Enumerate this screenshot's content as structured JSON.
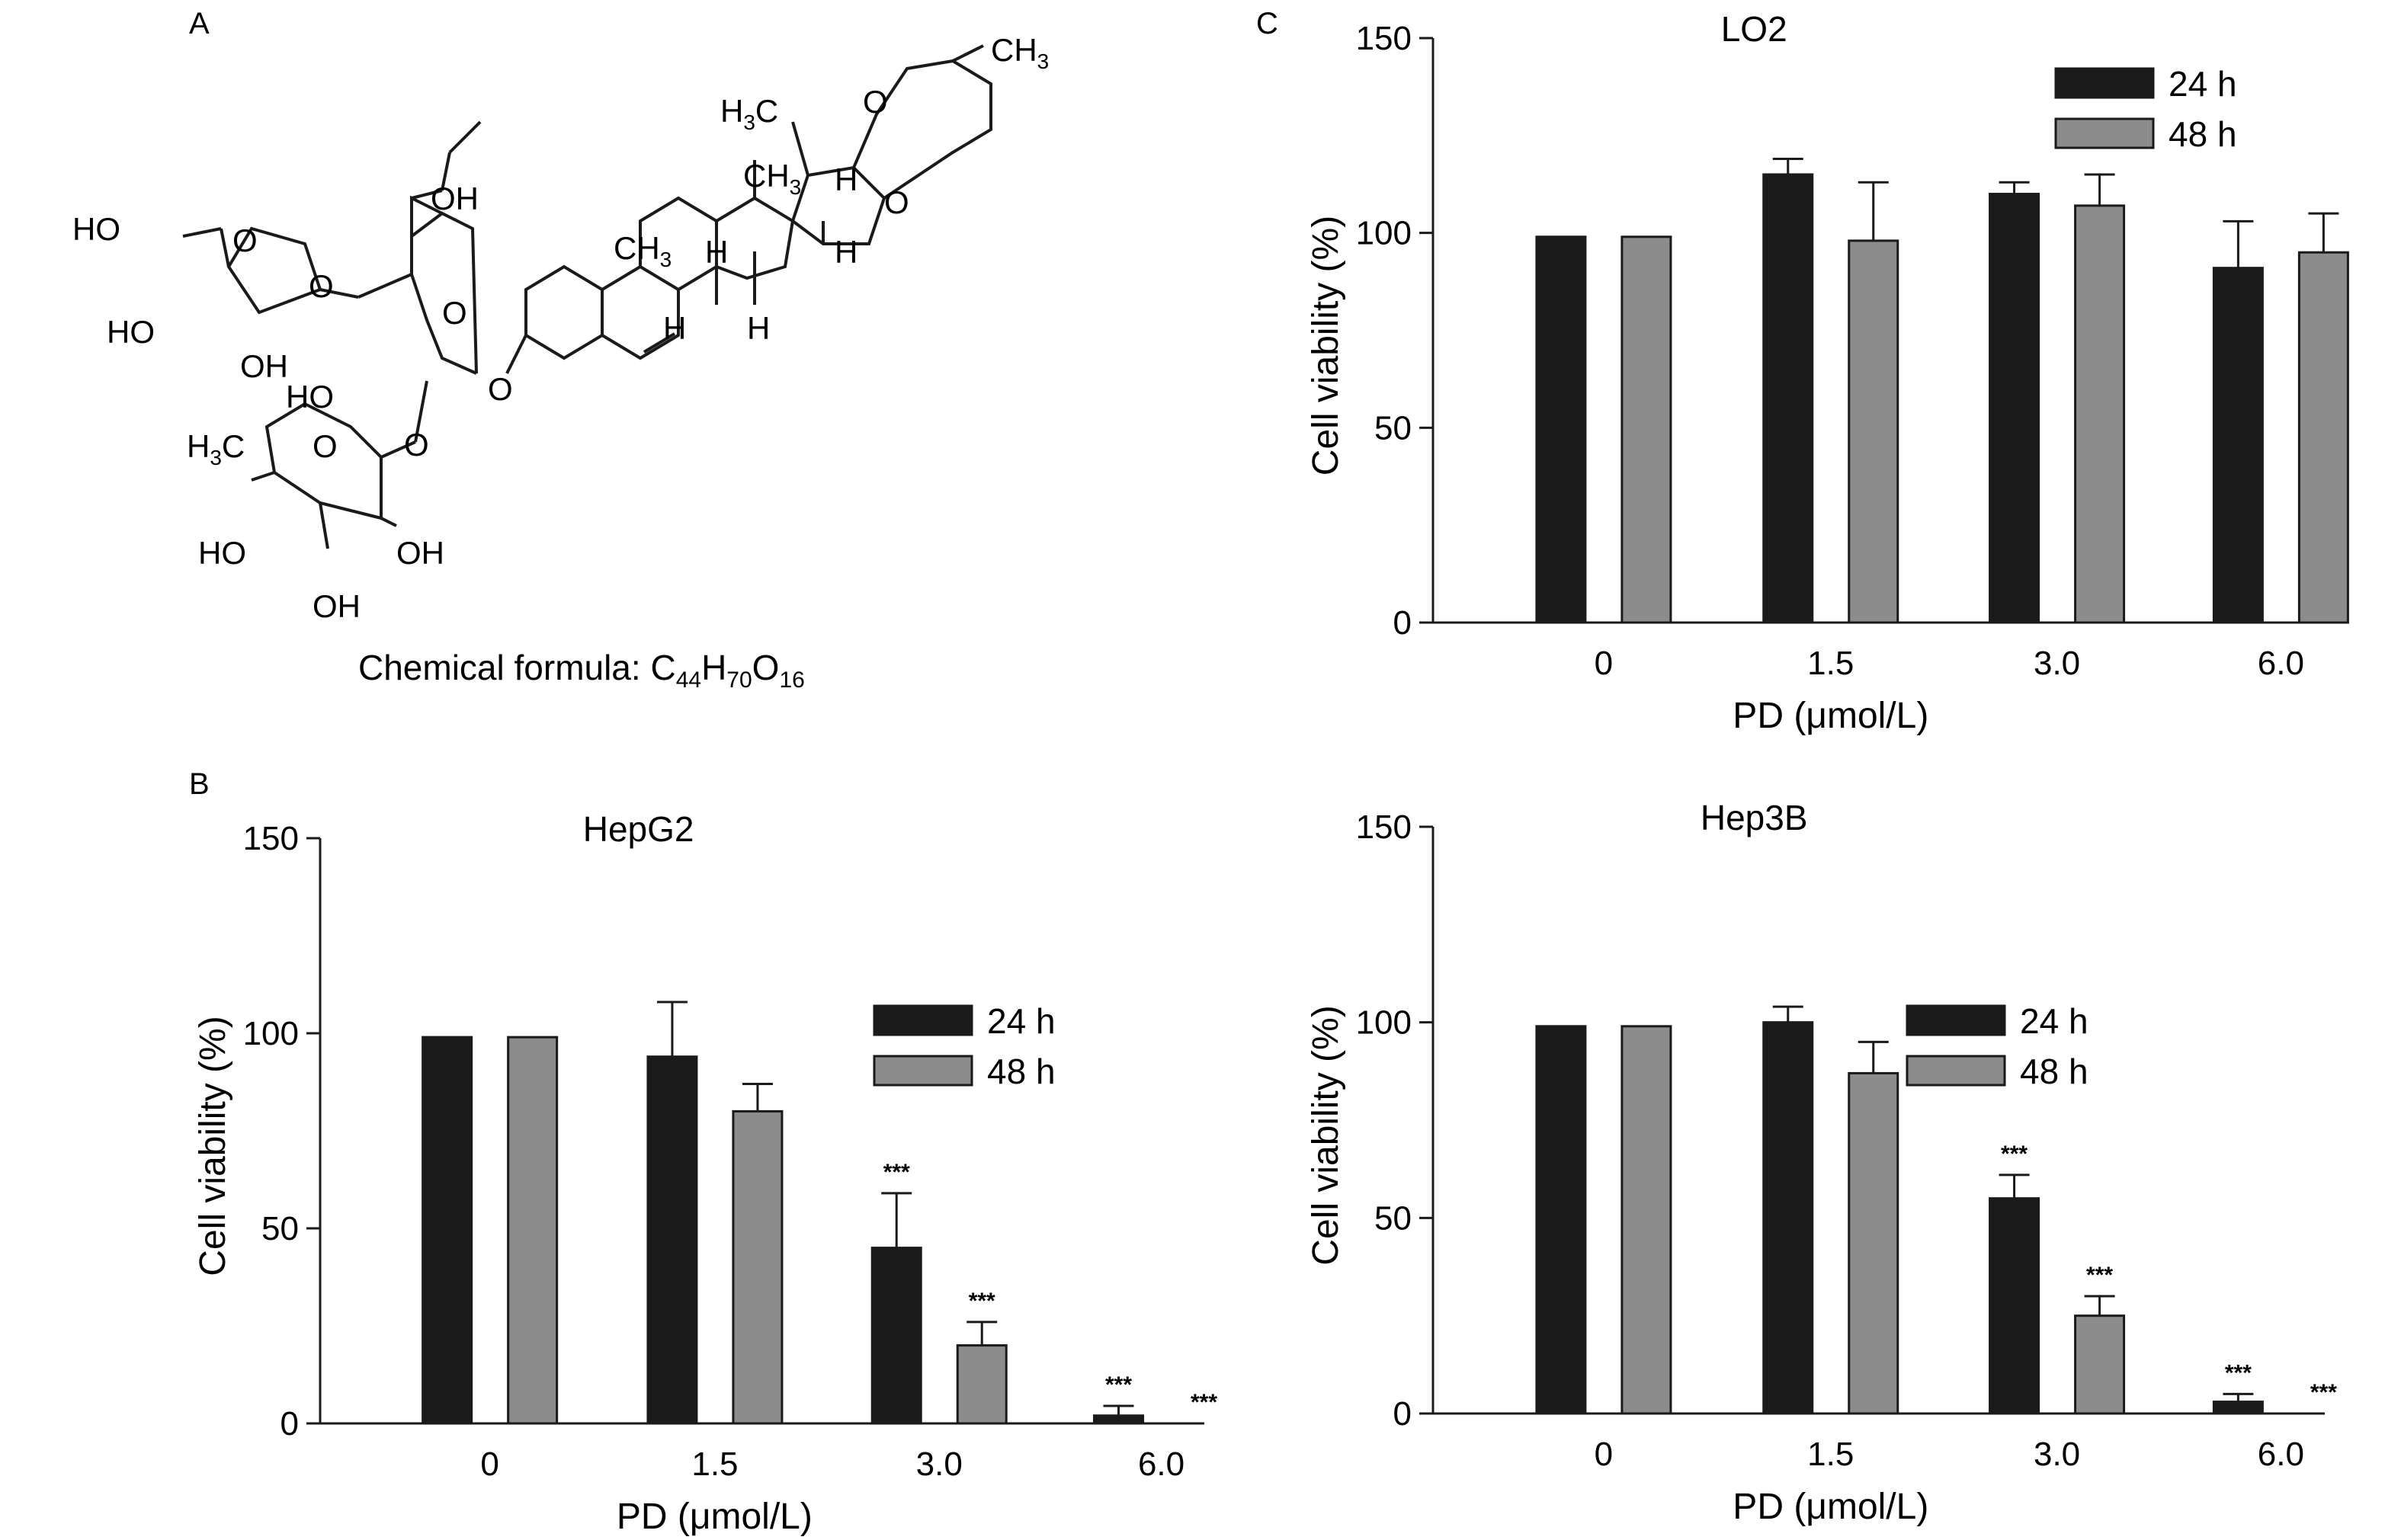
{
  "panels": {
    "A": {
      "letter": "A",
      "formula_prefix": "Chemical formula: ",
      "formula_parts": [
        {
          "t": "C",
          "sub": false
        },
        {
          "t": "44",
          "sub": true
        },
        {
          "t": "H",
          "sub": false
        },
        {
          "t": "70",
          "sub": true
        },
        {
          "t": "O",
          "sub": false
        },
        {
          "t": "16",
          "sub": true
        }
      ],
      "structure_labels": {
        "ch3_top": "CH",
        "ch3_top_sub": "3",
        "h3c_upper": "H",
        "h3c_upper_sub": "3",
        "h3c_upper_c": "C",
        "ch3_mid": "CH",
        "ch3_mid_sub": "3",
        "ch3_ring": "CH",
        "ch3_ring_sub": "3",
        "oh_top": "OH",
        "ho_left": "HO",
        "ho_sugar1": "HO",
        "oh_sugar1": "OH",
        "ho_sugar2": "HO",
        "h3c_rham": "H",
        "h3c_rham_sub": "3",
        "h3c_rham_c": "C",
        "ho_rham": "HO",
        "oh_rham_r": "OH",
        "oh_rham_b": "OH",
        "o": "O",
        "h": "H"
      }
    },
    "B": {
      "letter": "B"
    },
    "C": {
      "letter": "C"
    }
  },
  "legend": {
    "labels": [
      "24 h",
      "48 h"
    ],
    "colors": [
      "#1a1a1a",
      "#8c8c8c"
    ]
  },
  "chart_data": [
    {
      "id": "HepG2",
      "type": "bar",
      "title": "HepG2",
      "xlabel": "PD (μmol/L)",
      "ylabel": "Cell viability (%)",
      "categories": [
        "0",
        "1.5",
        "3.0",
        "6.0"
      ],
      "ylim": [
        0,
        150
      ],
      "yticks": [
        0,
        50,
        100,
        150
      ],
      "series": [
        {
          "name": "24 h",
          "color": "#1a1a1a",
          "values": [
            99,
            94,
            45,
            2
          ],
          "errors": [
            0,
            14,
            14,
            2.5
          ],
          "sig": [
            "",
            "",
            "***",
            "***"
          ]
        },
        {
          "name": "48 h",
          "color": "#8c8c8c",
          "values": [
            99,
            80,
            20,
            0
          ],
          "errors": [
            0,
            7,
            6,
            0
          ],
          "sig": [
            "",
            "",
            "***",
            "***"
          ]
        }
      ],
      "legend_position": "right-middle"
    },
    {
      "id": "LO2",
      "type": "bar",
      "title": "LO2",
      "xlabel": "PD (μmol/L)",
      "ylabel": "Cell viability (%)",
      "categories": [
        "0",
        "1.5",
        "3.0",
        "6.0"
      ],
      "ylim": [
        0,
        150
      ],
      "yticks": [
        0,
        50,
        100,
        150
      ],
      "series": [
        {
          "name": "24 h",
          "color": "#1a1a1a",
          "values": [
            99,
            115,
            110,
            91
          ],
          "errors": [
            0,
            4,
            3,
            12
          ],
          "sig": [
            "",
            "",
            "",
            ""
          ]
        },
        {
          "name": "48 h",
          "color": "#8c8c8c",
          "values": [
            99,
            98,
            107,
            95
          ],
          "errors": [
            0,
            15,
            8,
            10
          ],
          "sig": [
            "",
            "",
            "",
            ""
          ]
        }
      ],
      "legend_position": "top-right"
    },
    {
      "id": "Hep3B",
      "type": "bar",
      "title": "Hep3B",
      "xlabel": "PD (μmol/L)",
      "ylabel": "Cell viability (%)",
      "categories": [
        "0",
        "1.5",
        "3.0",
        "6.0"
      ],
      "ylim": [
        0,
        150
      ],
      "yticks": [
        0,
        50,
        100,
        150
      ],
      "series": [
        {
          "name": "24 h",
          "color": "#1a1a1a",
          "values": [
            99,
            100,
            55,
            3
          ],
          "errors": [
            0,
            4,
            6,
            2
          ],
          "sig": [
            "",
            "",
            "***",
            "***"
          ]
        },
        {
          "name": "48 h",
          "color": "#8c8c8c",
          "values": [
            99,
            87,
            25,
            0
          ],
          "errors": [
            0,
            8,
            5,
            0
          ],
          "sig": [
            "",
            "",
            "***",
            "***"
          ]
        }
      ],
      "legend_position": "right-middle"
    }
  ]
}
